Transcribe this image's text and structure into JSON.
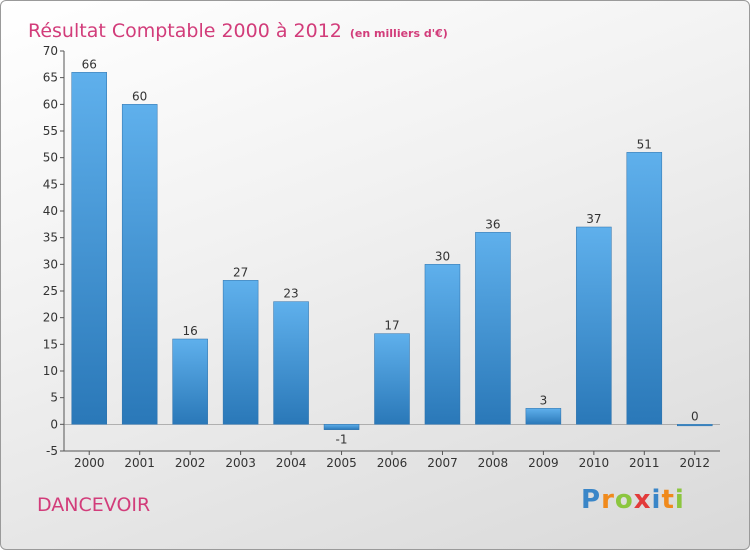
{
  "title": "Résultat Comptable 2000 à 2012",
  "subtitle": "(en milliers d'€)",
  "town": "DANCEVOIR",
  "logo": {
    "text": "Proxiti",
    "letters": [
      {
        "char": "P",
        "color": "#3a86c8"
      },
      {
        "char": "r",
        "color": "#f08a1c"
      },
      {
        "char": "o",
        "color": "#8cc63f"
      },
      {
        "char": "x",
        "color": "#e23b3b"
      },
      {
        "char": "i",
        "color": "#3a86c8"
      },
      {
        "char": "t",
        "color": "#f08a1c"
      },
      {
        "char": "i",
        "color": "#8cc63f"
      }
    ]
  },
  "colors": {
    "accent": "#d23c7a",
    "bar_top": "#5fb0ec",
    "bar_bottom": "#2a78b8"
  },
  "chart_data": {
    "type": "bar",
    "categories": [
      "2000",
      "2001",
      "2002",
      "2003",
      "2004",
      "2005",
      "2006",
      "2007",
      "2008",
      "2009",
      "2010",
      "2011",
      "2012"
    ],
    "values": [
      66,
      60,
      16,
      27,
      23,
      -1,
      17,
      30,
      36,
      3,
      37,
      51,
      0
    ],
    "value_labels": [
      "66",
      "60",
      "16",
      "27",
      "23",
      "-1",
      "17",
      "30",
      "36",
      "3",
      "37",
      "51",
      "0"
    ],
    "yticks": [
      -5,
      0,
      5,
      10,
      15,
      20,
      25,
      30,
      35,
      40,
      45,
      50,
      55,
      60,
      65,
      70
    ],
    "ylim": [
      -5,
      70
    ],
    "grid": false,
    "legend": "none"
  }
}
